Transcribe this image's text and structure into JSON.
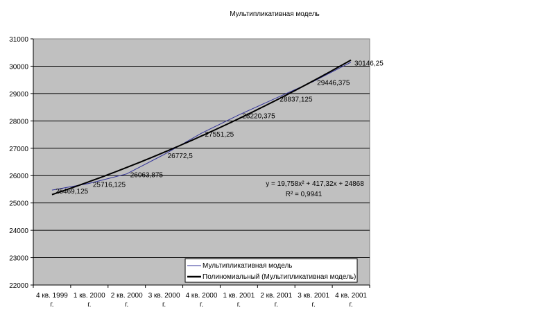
{
  "chart_data": {
    "type": "line",
    "title": "Мультипликативная модель",
    "categories": [
      "4 кв. 1999 г.",
      "1 кв. 2000 г.",
      "2 кв. 2000 г.",
      "3 кв. 2000 г.",
      "4 кв. 2000 г.",
      "1 кв. 2001 г.",
      "2 кв. 2001 г.",
      "3 кв. 2001 г.",
      "4 кв. 2001 г."
    ],
    "series": [
      {
        "name": "Мультипликативная модель",
        "color": "#333399",
        "values": [
          25469.125,
          25716.125,
          26063.875,
          26772.5,
          27551.25,
          28220.375,
          28837.125,
          29446.375,
          30146.25
        ],
        "labels": [
          "25469,125",
          "25716,125",
          "26063,875",
          "26772,5",
          "27551,25",
          "28220,375",
          "28837,125",
          "29446,375",
          "30146,25"
        ]
      }
    ],
    "trendline": {
      "name": "Полиномиальный (Мультипликативная модель)",
      "color": "#000000",
      "coefficients": [
        19.758,
        417.32,
        24868
      ],
      "equation": "y = 19,758x² + 417,32x + 24868",
      "r2": "R² = 0,9941"
    },
    "ylim": [
      22000,
      31000
    ],
    "yticks": [
      "22000",
      "23000",
      "24000",
      "25000",
      "26000",
      "27000",
      "28000",
      "29000",
      "30000",
      "31000"
    ],
    "grid": true,
    "legend": "bottom-right",
    "plot_bg": "#c0c0c0"
  }
}
